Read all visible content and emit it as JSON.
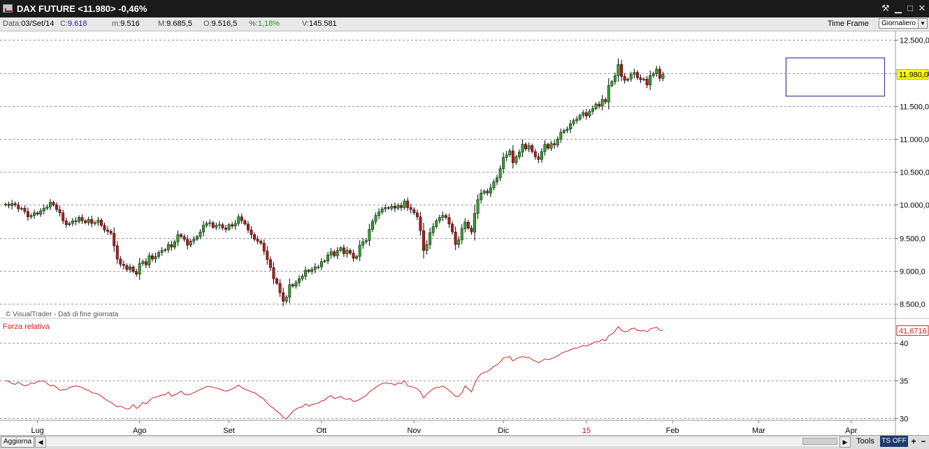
{
  "window": {
    "title": "DAX FUTURE <11.980> -0,46%"
  },
  "infobar": {
    "date_label": "Data:",
    "date_value": "03/Set/14",
    "close_label": "C:",
    "close_value": "9.618",
    "low_label": "m:",
    "low_value": "9.516",
    "high_label": "M:",
    "high_value": "9.685,5",
    "open_label": "O:",
    "open_value": "9.516,5",
    "pct_label": "%:",
    "pct_value": "1,18%",
    "volume_label": "V:",
    "volume_value": "145.581",
    "timeframe_label": "Time Frame",
    "timeframe_value": "Giornaliero"
  },
  "bottombar": {
    "refresh_label": "Aggiorna",
    "tools_label": "Tools",
    "tsoff_label": "TS OFF"
  },
  "icon_names": [
    "tools-icon",
    "minimize-icon",
    "maximize-icon",
    "close-icon",
    "chevron-down-icon",
    "scroll-left-icon",
    "scroll-right-icon",
    "plus-icon",
    "minus-icon"
  ],
  "colors": {
    "up_candle": "#2fa52f",
    "down_candle": "#c81414",
    "rsi_line": "#d02020",
    "last_price_label": "#ffff00",
    "selection_box": "#1c1c8c"
  },
  "chart_data": [
    {
      "type": "candlestick",
      "title": "",
      "watermark": "© VisualTrader - Dati di fine giornata",
      "last_value_label": "11.980,0",
      "ylim": [
        8300,
        12600
      ],
      "yticks": [
        {
          "value": 8500,
          "label": "8.500,0"
        },
        {
          "value": 9000,
          "label": "9.000,0"
        },
        {
          "value": 9500,
          "label": "9.500,0"
        },
        {
          "value": 10000,
          "label": "10.000,0"
        },
        {
          "value": 10500,
          "label": "10.500,0"
        },
        {
          "value": 11000,
          "label": "11.000,0"
        },
        {
          "value": 11500,
          "label": "11.500,0"
        },
        {
          "value": 12000,
          "label": "12.000,0"
        },
        {
          "value": 12500,
          "label": "12.500,0"
        }
      ],
      "xticks": [
        {
          "index": 10,
          "label": "Lug",
          "highlight": false
        },
        {
          "index": 42,
          "label": "Ago",
          "highlight": false
        },
        {
          "index": 70,
          "label": "Set",
          "highlight": false
        },
        {
          "index": 99,
          "label": "Ott",
          "highlight": false
        },
        {
          "index": 128,
          "label": "Nov",
          "highlight": false
        },
        {
          "index": 156,
          "label": "Dic",
          "highlight": false
        },
        {
          "index": 182,
          "label": "15",
          "highlight": true
        },
        {
          "index": 209,
          "label": "Feb",
          "highlight": false
        },
        {
          "index": 236,
          "label": "Mar",
          "highlight": false
        },
        {
          "index": 265,
          "label": "Apr",
          "highlight": false
        }
      ],
      "selection_box": {
        "from_index": 245,
        "to_index": 275,
        "ylim": [
          11650,
          12230
        ]
      },
      "close": [
        10010,
        9990,
        10020,
        10000,
        9940,
        9950,
        9900,
        9820,
        9840,
        9880,
        9860,
        9910,
        9950,
        9970,
        10040,
        10000,
        9930,
        9880,
        9760,
        9700,
        9720,
        9760,
        9750,
        9810,
        9760,
        9730,
        9780,
        9720,
        9730,
        9770,
        9690,
        9620,
        9600,
        9570,
        9380,
        9180,
        9100,
        9080,
        9020,
        9060,
        8990,
        8950,
        9110,
        9140,
        9090,
        9230,
        9180,
        9220,
        9280,
        9310,
        9320,
        9400,
        9360,
        9440,
        9550,
        9520,
        9480,
        9390,
        9450,
        9480,
        9520,
        9590,
        9690,
        9720,
        9730,
        9660,
        9690,
        9700,
        9650,
        9630,
        9700,
        9680,
        9720,
        9820,
        9760,
        9710,
        9620,
        9550,
        9480,
        9450,
        9420,
        9300,
        9170,
        9050,
        8880,
        8810,
        8670,
        8540,
        8600,
        8790,
        8770,
        8820,
        8880,
        8920,
        9010,
        8990,
        9020,
        9060,
        9060,
        9140,
        9150,
        9240,
        9290,
        9230,
        9310,
        9350,
        9260,
        9310,
        9270,
        9190,
        9220,
        9390,
        9440,
        9460,
        9630,
        9750,
        9840,
        9890,
        9940,
        9960,
        9950,
        9980,
        9950,
        9990,
        9960,
        10060,
        9960,
        9930,
        9880,
        9820,
        9610,
        9310,
        9400,
        9580,
        9670,
        9760,
        9810,
        9840,
        9810,
        9710,
        9590,
        9400,
        9470,
        9640,
        9740,
        9650,
        9590,
        9870,
        10080,
        10180,
        10210,
        10180,
        10260,
        10350,
        10410,
        10550,
        10720,
        10760,
        10820,
        10640,
        10730,
        10800,
        10920,
        10850,
        10900,
        10810,
        10730,
        10690,
        10810,
        10920,
        10860,
        10930,
        10910,
        11000,
        11100,
        11130,
        11150,
        11230,
        11280,
        11300,
        11360,
        11400,
        11350,
        11420,
        11460,
        11530,
        11500,
        11600,
        11560,
        11810,
        11870,
        11960,
        12130,
        11950,
        11890,
        11910,
        11980,
        12010,
        11930,
        11900,
        11910,
        11820,
        11960,
        11990,
        12060,
        11920,
        11980
      ],
      "indices_note": "",
      "x_first": "",
      "x_last": ""
    },
    {
      "type": "line",
      "name": "Forza relativa",
      "last_value_label": "41,6716",
      "ylim": [
        29.7,
        43.1
      ],
      "yticks": [
        {
          "value": 30,
          "label": "30"
        },
        {
          "value": 35,
          "label": "35"
        },
        {
          "value": 40,
          "label": "40"
        }
      ],
      "values": [
        35,
        34.9,
        34.6,
        34.5,
        34.8,
        34.5,
        34.3,
        34.4,
        34.7,
        34.6,
        34.9,
        34.9,
        35,
        34.6,
        34.3,
        34.4,
        34.1,
        33.7,
        33.8,
        33.8,
        34.1,
        34.2,
        34.3,
        34.2,
        34.1,
        33.8,
        33.7,
        33.4,
        33.3,
        33.2,
        32.9,
        32.6,
        32.3,
        32.1,
        31.8,
        31.5,
        31.6,
        31.4,
        31.2,
        31.3,
        31.8,
        31.3,
        31.6,
        32.1,
        31.9,
        32.3,
        32.7,
        32.8,
        32.9,
        33.1,
        33.1,
        33.5,
        32.9,
        33.1,
        33.3,
        33.6,
        33.2,
        33.1,
        33.2,
        33.4,
        33.6,
        33.8,
        34,
        34.2,
        34.2,
        34.1,
        34,
        33.9,
        33.7,
        33.6,
        33.7,
        33.9,
        34.1,
        34.4,
        34.1,
        33.8,
        33.7,
        33.5,
        33.4,
        33.1,
        32.8,
        32.5,
        32,
        31.6,
        31.3,
        30.9,
        30.6,
        30.1,
        29.9,
        30.4,
        30.9,
        31.2,
        31.4,
        31.5,
        31.9,
        31.6,
        31.8,
        31.9,
        32,
        32.3,
        32.4,
        32.8,
        33,
        32.6,
        32.7,
        32.9,
        32.6,
        32.5,
        32.6,
        32.2,
        32.3,
        32.5,
        32.8,
        33,
        33.5,
        33.8,
        34.1,
        34.4,
        34.6,
        34.7,
        34.6,
        34.6,
        34.4,
        34.7,
        34.6,
        35,
        34.3,
        34.2,
        34.1,
        33.9,
        33.5,
        32.7,
        33.2,
        33.6,
        33.9,
        34.1,
        34.1,
        34.3,
        34,
        33.7,
        33.3,
        32.9,
        32.9,
        33.4,
        34.3,
        33.9,
        33.5,
        34.6,
        35.4,
        35.9,
        36.1,
        36.2,
        36.5,
        36.9,
        37.1,
        37.5,
        38,
        38.1,
        38.2,
        37.6,
        37.9,
        38.1,
        38.2,
        38.1,
        38.1,
        37.8,
        37.6,
        37.4,
        37.6,
        37.9,
        37.8,
        37.9,
        38.1,
        38.3,
        38.6,
        38.8,
        38.9,
        39.1,
        39.3,
        39.3,
        39.5,
        39.7,
        39.6,
        39.8,
        40,
        40.2,
        40.2,
        40.5,
        40.3,
        41,
        41.2,
        41.6,
        42.2,
        41.7,
        41.5,
        41.6,
        41.9,
        42,
        41.7,
        41.6,
        41.7,
        41.5,
        41.9,
        42,
        42.1,
        41.7,
        41.67
      ]
    }
  ]
}
